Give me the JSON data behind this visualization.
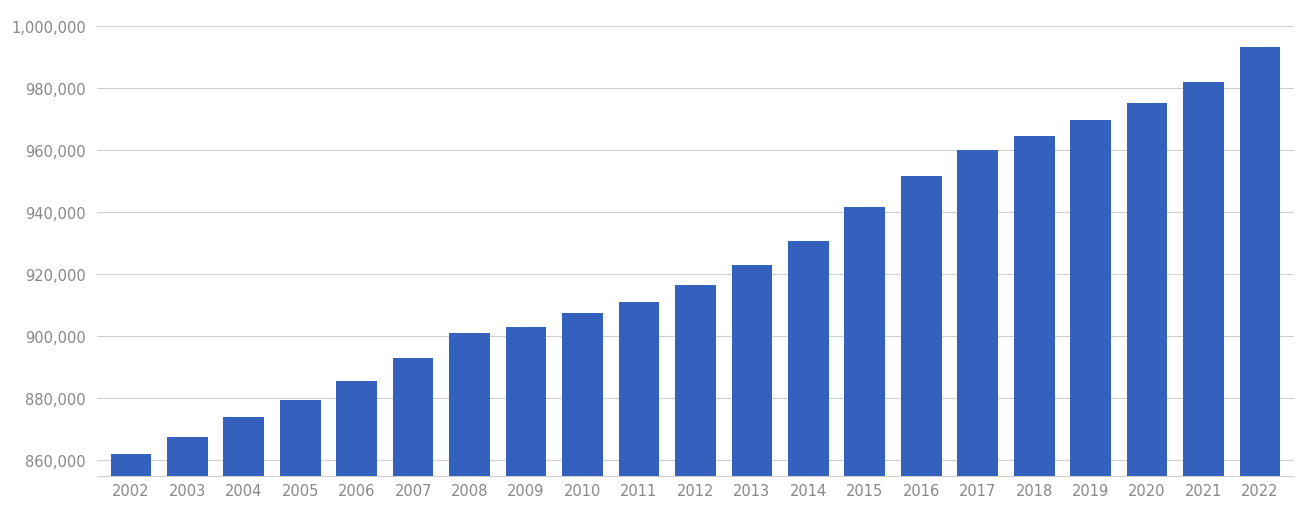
{
  "years": [
    2002,
    2003,
    2004,
    2005,
    2006,
    2007,
    2008,
    2009,
    2010,
    2011,
    2012,
    2013,
    2014,
    2015,
    2016,
    2017,
    2018,
    2019,
    2020,
    2021,
    2022
  ],
  "values": [
    862000,
    867500,
    874000,
    879500,
    885500,
    893000,
    901000,
    903000,
    907500,
    911000,
    916500,
    923000,
    930500,
    941500,
    951500,
    960000,
    964500,
    969500,
    975000,
    982000,
    993000
  ],
  "bar_color": "#3461be",
  "ylim_min": 855000,
  "ylim_max": 1005000,
  "yticks": [
    860000,
    880000,
    900000,
    920000,
    940000,
    960000,
    980000,
    1000000
  ],
  "background_color": "#ffffff",
  "grid_color": "#d0d0d0",
  "tick_color": "#888888",
  "bar_width": 0.72,
  "figwidth": 13.05,
  "figheight": 5.1,
  "dpi": 100
}
